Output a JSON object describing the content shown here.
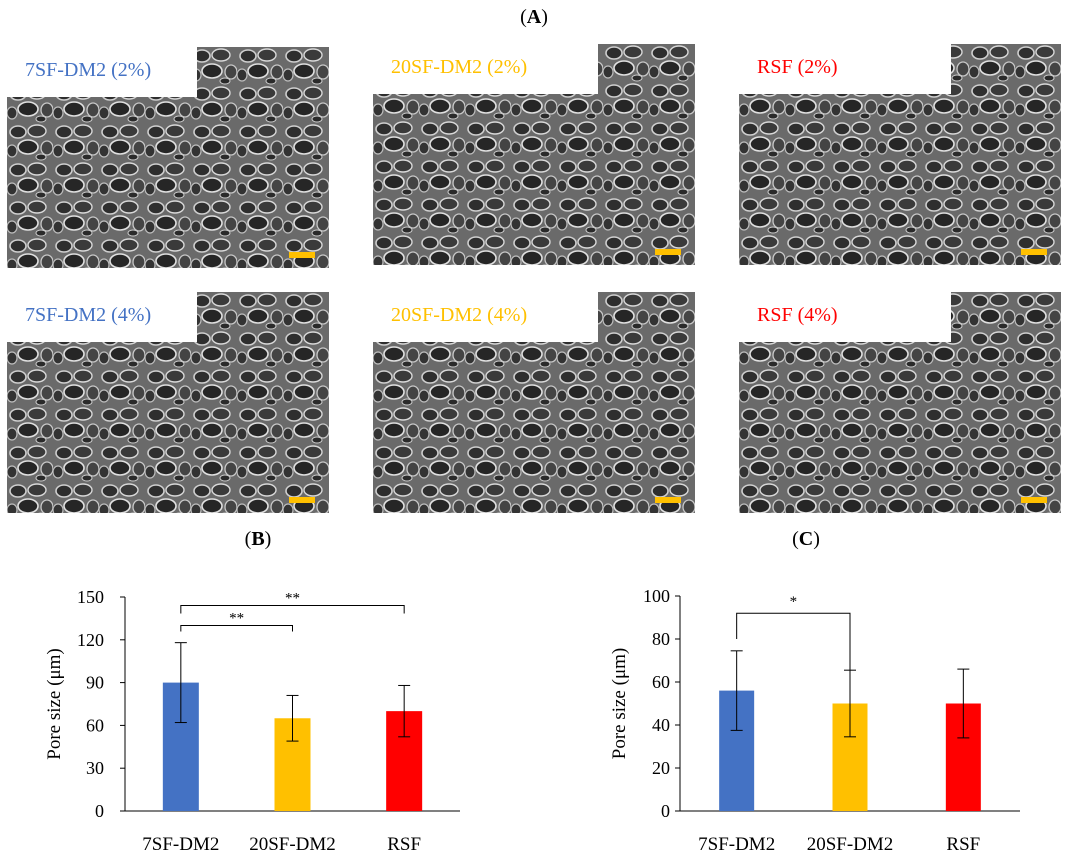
{
  "panels": {
    "A": "A",
    "B": "B",
    "C": "C"
  },
  "sem_images": [
    {
      "label": "7SF-DM2 (2%)",
      "color": "#4472C4"
    },
    {
      "label": "20SF-DM2 (2%)",
      "color": "#FFC000"
    },
    {
      "label": "RSF (2%)",
      "color": "#FF0000"
    },
    {
      "label": "7SF-DM2 (4%)",
      "color": "#4472C4"
    },
    {
      "label": "20SF-DM2 (4%)",
      "color": "#FFC000"
    },
    {
      "label": "RSF (4%)",
      "color": "#FF0000"
    }
  ],
  "scale_bar_color": "#FFC000",
  "chart_data": [
    {
      "panel": "B",
      "type": "bar",
      "categories": [
        "7SF-DM2",
        "20SF-DM2",
        "RSF"
      ],
      "values": [
        90,
        65,
        70
      ],
      "errors": [
        28,
        16,
        18
      ],
      "colors": [
        "#4472C4",
        "#FFC000",
        "#FF0000"
      ],
      "ylabel": "Pore size (μm)",
      "ylim": [
        0,
        150
      ],
      "yticks": [
        "0",
        "30",
        "60",
        "90",
        "120",
        "150"
      ],
      "ytick_values": [
        0,
        30,
        60,
        90,
        120,
        150
      ],
      "significance": [
        {
          "from": 0,
          "to": 1,
          "label": "**"
        },
        {
          "from": 0,
          "to": 2,
          "label": "**"
        }
      ]
    },
    {
      "panel": "C",
      "type": "bar",
      "categories": [
        "7SF-DM2",
        "20SF-DM2",
        "RSF"
      ],
      "values": [
        56,
        50,
        50
      ],
      "errors": [
        18.5,
        15.5,
        16
      ],
      "colors": [
        "#4472C4",
        "#FFC000",
        "#FF0000"
      ],
      "ylabel": "Pore size (μm)",
      "ylim": [
        0,
        100
      ],
      "yticks": [
        "0",
        "20",
        "40",
        "60",
        "80",
        "100"
      ],
      "ytick_values": [
        0,
        20,
        40,
        60,
        80,
        100
      ],
      "significance": [
        {
          "from": 0,
          "to": 1,
          "label": "*"
        }
      ]
    }
  ]
}
